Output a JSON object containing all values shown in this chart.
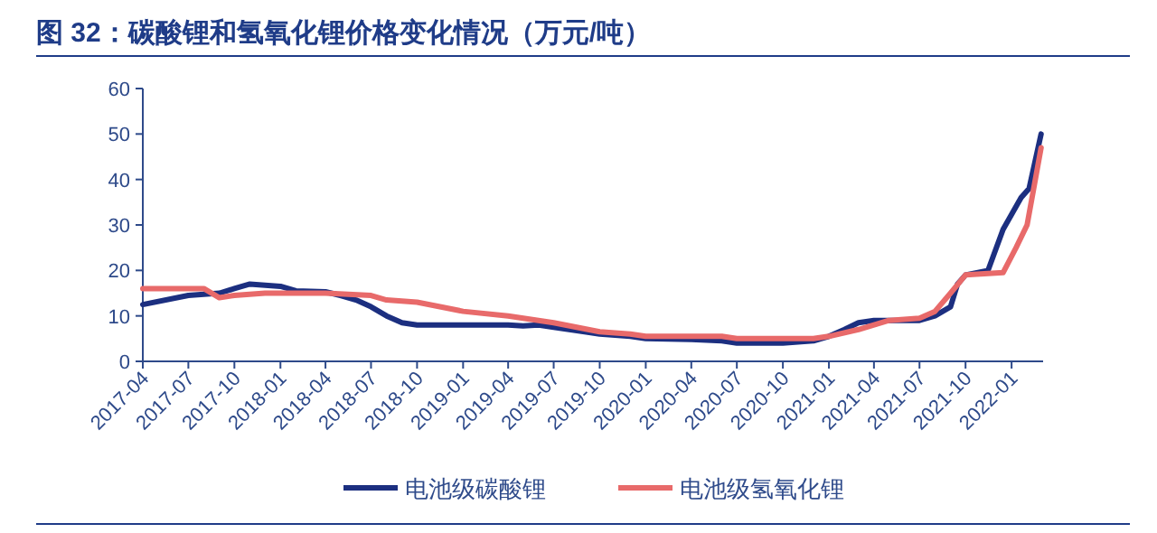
{
  "chart_data": {
    "type": "line",
    "title": "图 32：碳酸锂和氢氧化锂价格变化情况（万元/吨）",
    "xlim": [
      "2017-04-01",
      "2022-03-05"
    ],
    "xticks": [
      "2017-04",
      "2017-07",
      "2017-10",
      "2018-01",
      "2018-04",
      "2018-07",
      "2018-10",
      "2019-01",
      "2019-04",
      "2019-07",
      "2019-10",
      "2020-01",
      "2020-04",
      "2020-07",
      "2020-10",
      "2021-01",
      "2021-04",
      "2021-07",
      "2021-10",
      "2022-01"
    ],
    "ylim": [
      0,
      60
    ],
    "yticks": [
      0,
      10,
      20,
      30,
      40,
      50,
      60
    ],
    "grid": false,
    "legend": "bottom",
    "marker": "none",
    "line_style": "solid",
    "series": [
      {
        "name": "电池级碳酸锂",
        "color": "#1c2f80",
        "x": [
          "2017-04-01",
          "2017-07-01",
          "2017-09-01",
          "2017-10-01",
          "2017-11-01",
          "2018-01-01",
          "2018-02-01",
          "2018-04-01",
          "2018-05-01",
          "2018-06-01",
          "2018-07-01",
          "2018-08-01",
          "2018-09-01",
          "2018-10-01",
          "2019-01-01",
          "2019-04-01",
          "2019-05-01",
          "2019-06-01",
          "2019-07-01",
          "2019-08-01",
          "2019-09-01",
          "2019-10-01",
          "2019-12-01",
          "2020-01-01",
          "2020-04-01",
          "2020-06-01",
          "2020-07-01",
          "2020-10-01",
          "2020-12-01",
          "2021-01-01",
          "2021-02-01",
          "2021-03-01",
          "2021-04-01",
          "2021-07-01",
          "2021-08-01",
          "2021-09-01",
          "2021-09-15",
          "2021-10-01",
          "2021-11-15",
          "2021-12-15",
          "2022-01-20",
          "2022-02-05",
          "2022-03-01"
        ],
        "values": [
          12.5,
          14.5,
          15,
          16,
          17,
          16.5,
          15.5,
          15.3,
          14.5,
          13.5,
          12,
          10,
          8.5,
          8,
          8,
          8,
          7.8,
          8,
          7.5,
          7,
          6.5,
          6,
          5.5,
          5,
          4.8,
          4.5,
          4,
          4,
          4.5,
          5.5,
          7,
          8.5,
          9,
          9,
          10,
          12,
          17,
          19,
          20,
          29,
          36,
          38,
          50
        ]
      },
      {
        "name": "电池级氢氧化锂",
        "color": "#e86a6a",
        "x": [
          "2017-04-01",
          "2017-08-01",
          "2017-09-01",
          "2017-10-01",
          "2017-12-01",
          "2018-04-01",
          "2018-07-01",
          "2018-08-01",
          "2018-10-01",
          "2019-01-01",
          "2019-04-01",
          "2019-07-01",
          "2019-10-01",
          "2019-12-01",
          "2020-01-01",
          "2020-06-01",
          "2020-07-01",
          "2020-12-01",
          "2021-01-01",
          "2021-03-01",
          "2021-05-01",
          "2021-07-01",
          "2021-08-01",
          "2021-09-01",
          "2021-10-01",
          "2021-12-15",
          "2022-01-10",
          "2022-02-01",
          "2022-03-01"
        ],
        "values": [
          16,
          16,
          14,
          14.5,
          15,
          15,
          14.5,
          13.5,
          13,
          11,
          10,
          8.5,
          6.5,
          6,
          5.5,
          5.5,
          5,
          5,
          5.5,
          7,
          9,
          9.5,
          11,
          15,
          19,
          19.5,
          25,
          30,
          47
        ]
      }
    ]
  }
}
